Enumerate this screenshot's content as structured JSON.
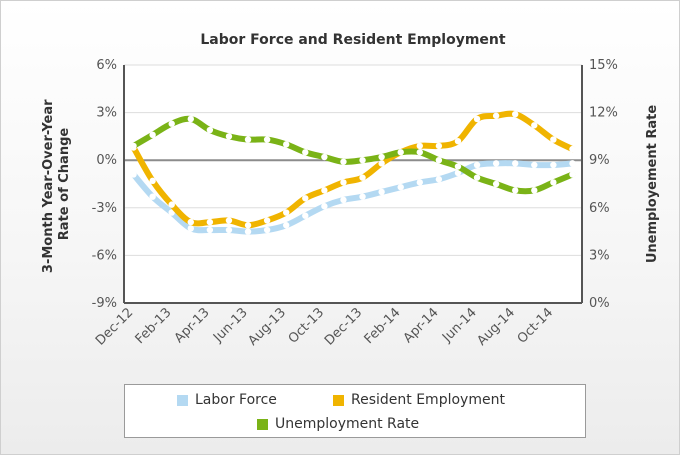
{
  "chart_data": {
    "type": "line",
    "title": "Labor Force and Resident Employment",
    "ylabel": "3-Month Year-Over-Year\nRate of Change",
    "y2label": "Unemployement Rate",
    "ylim": [
      -9,
      6
    ],
    "y2lim": [
      0,
      15
    ],
    "yticks": [
      "6%",
      "3%",
      "0%",
      "-3%",
      "-6%",
      "-9%"
    ],
    "y2ticks": [
      "15%",
      "12%",
      "9%",
      "6%",
      "3%",
      "0%"
    ],
    "x": [
      "Dec-12",
      "Jan-13",
      "Feb-13",
      "Mar-13",
      "Apr-13",
      "May-13",
      "Jun-13",
      "Jul-13",
      "Aug-13",
      "Sep-13",
      "Oct-13",
      "Nov-13",
      "Dec-13",
      "Jan-14",
      "Feb-14",
      "Mar-14",
      "Apr-14",
      "May-14",
      "Jun-14",
      "Jul-14",
      "Aug-14",
      "Sep-14",
      "Oct-14",
      "Nov-14"
    ],
    "xtick_labels": [
      "Dec-12",
      "Feb-13",
      "Apr-13",
      "Jun-13",
      "Aug-13",
      "Oct-13",
      "Dec-13",
      "Feb-14",
      "Apr-14",
      "Jun-14",
      "Aug-14",
      "Oct-14"
    ],
    "grid": true,
    "legend_position": "bottom",
    "series": [
      {
        "name": "Labor Force",
        "axis": "left",
        "color": "#b4d9f2",
        "values": [
          -0.9,
          -2.3,
          -3.3,
          -4.3,
          -4.4,
          -4.4,
          -4.5,
          -4.4,
          -4.1,
          -3.5,
          -2.9,
          -2.5,
          -2.3,
          -2.0,
          -1.7,
          -1.4,
          -1.2,
          -0.8,
          -0.3,
          -0.2,
          -0.2,
          -0.3,
          -0.3,
          -0.2
        ]
      },
      {
        "name": "Resident Employment",
        "axis": "left",
        "color": "#f0b400",
        "values": [
          0.8,
          -1.3,
          -2.8,
          -3.9,
          -3.9,
          -3.8,
          -4.1,
          -3.8,
          -3.3,
          -2.4,
          -1.9,
          -1.4,
          -1.1,
          -0.2,
          0.5,
          0.9,
          0.9,
          1.2,
          2.6,
          2.8,
          2.9,
          2.2,
          1.3,
          0.7
        ]
      },
      {
        "name": "Unemployment Rate",
        "axis": "right",
        "color": "#7ab317",
        "values": [
          9.9,
          10.6,
          11.3,
          11.6,
          10.9,
          10.5,
          10.3,
          10.3,
          10.0,
          9.5,
          9.2,
          8.9,
          9.0,
          9.2,
          9.5,
          9.5,
          9.0,
          8.6,
          7.9,
          7.5,
          7.1,
          7.1,
          7.6,
          8.1
        ]
      }
    ]
  }
}
